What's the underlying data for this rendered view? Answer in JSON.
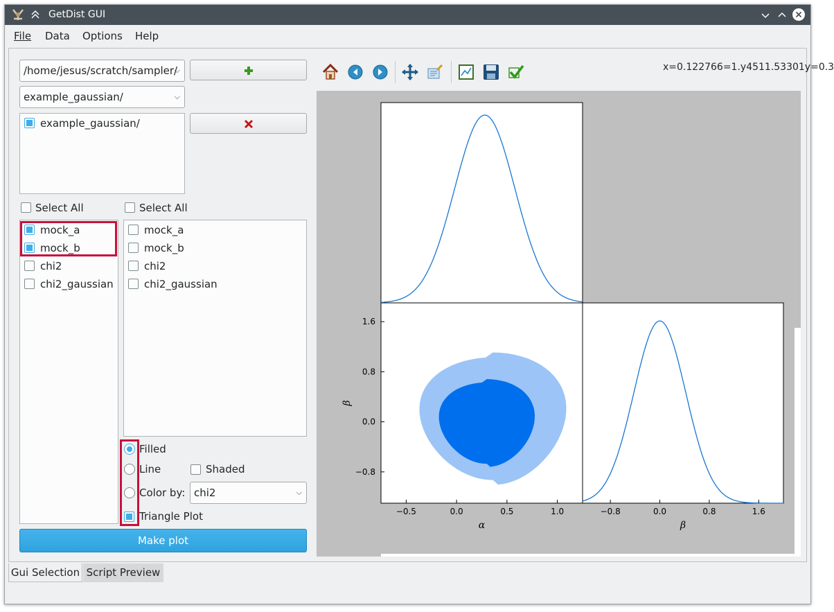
{
  "window": {
    "title": "GetDist GUI"
  },
  "menu": [
    {
      "label": "File"
    },
    {
      "label": "Data"
    },
    {
      "label": "Options"
    },
    {
      "label": "Help"
    }
  ],
  "left": {
    "directory_combo": "/home/jesus/scratch/sampler/",
    "root_combo": "example_gaussian/",
    "roots": [
      {
        "label": "example_gaussian/",
        "checked": true
      }
    ],
    "x_select_all": "Select All",
    "y_select_all": "Select All",
    "x_params": [
      {
        "label": "mock_a",
        "checked": true
      },
      {
        "label": "mock_b",
        "checked": true
      },
      {
        "label": "chi2",
        "checked": false
      },
      {
        "label": "chi2_gaussian",
        "checked": false
      }
    ],
    "y_params": [
      {
        "label": "mock_a",
        "checked": false
      },
      {
        "label": "mock_b",
        "checked": false
      },
      {
        "label": "chi2",
        "checked": false
      },
      {
        "label": "chi2_gaussian",
        "checked": false
      }
    ],
    "options": {
      "filled": "Filled",
      "line": "Line",
      "shaded": "Shaded",
      "color_by": "Color by:",
      "color_by_value": "chi2",
      "triangle": "Triangle Plot"
    },
    "make_plot": "Make plot"
  },
  "tabs": [
    {
      "label": "Gui Selection",
      "active": true
    },
    {
      "label": "Script Preview",
      "active": false
    }
  ],
  "toolbar": {
    "coords": "x=0.122766=1.y4511.53301y=0.3"
  },
  "icons": [
    "home-icon",
    "back-icon",
    "forward-icon",
    "pan-icon",
    "configure-icon",
    "zoom-rect-icon",
    "save-icon",
    "apply-icon"
  ],
  "colors": {
    "accent": "#3daee9",
    "highlight": "#c8103b",
    "inner_contour": "#006fed",
    "outer_contour": "#9cc4f6",
    "line": "#1976d2"
  },
  "chart_data": {
    "type": "triangle",
    "params": [
      "α",
      "β"
    ],
    "alpha_ticks": [
      "−0.5",
      "0.0",
      "0.5",
      "1.0"
    ],
    "beta_ticks": [
      "−0.8",
      "0.0",
      "0.8",
      "1.6"
    ],
    "xlabel_alpha": "α",
    "xlabel_beta": "β",
    "ylabel_beta": "β",
    "xlim_alpha": [
      -0.75,
      1.25
    ],
    "xlim_beta": [
      -1.25,
      2.0
    ],
    "ylim_beta": [
      -1.3,
      1.9
    ],
    "marginal_alpha": {
      "mean": 0.28,
      "sigma": 0.3
    },
    "marginal_beta": {
      "mean": 0.0,
      "sigma": 0.42
    }
  }
}
